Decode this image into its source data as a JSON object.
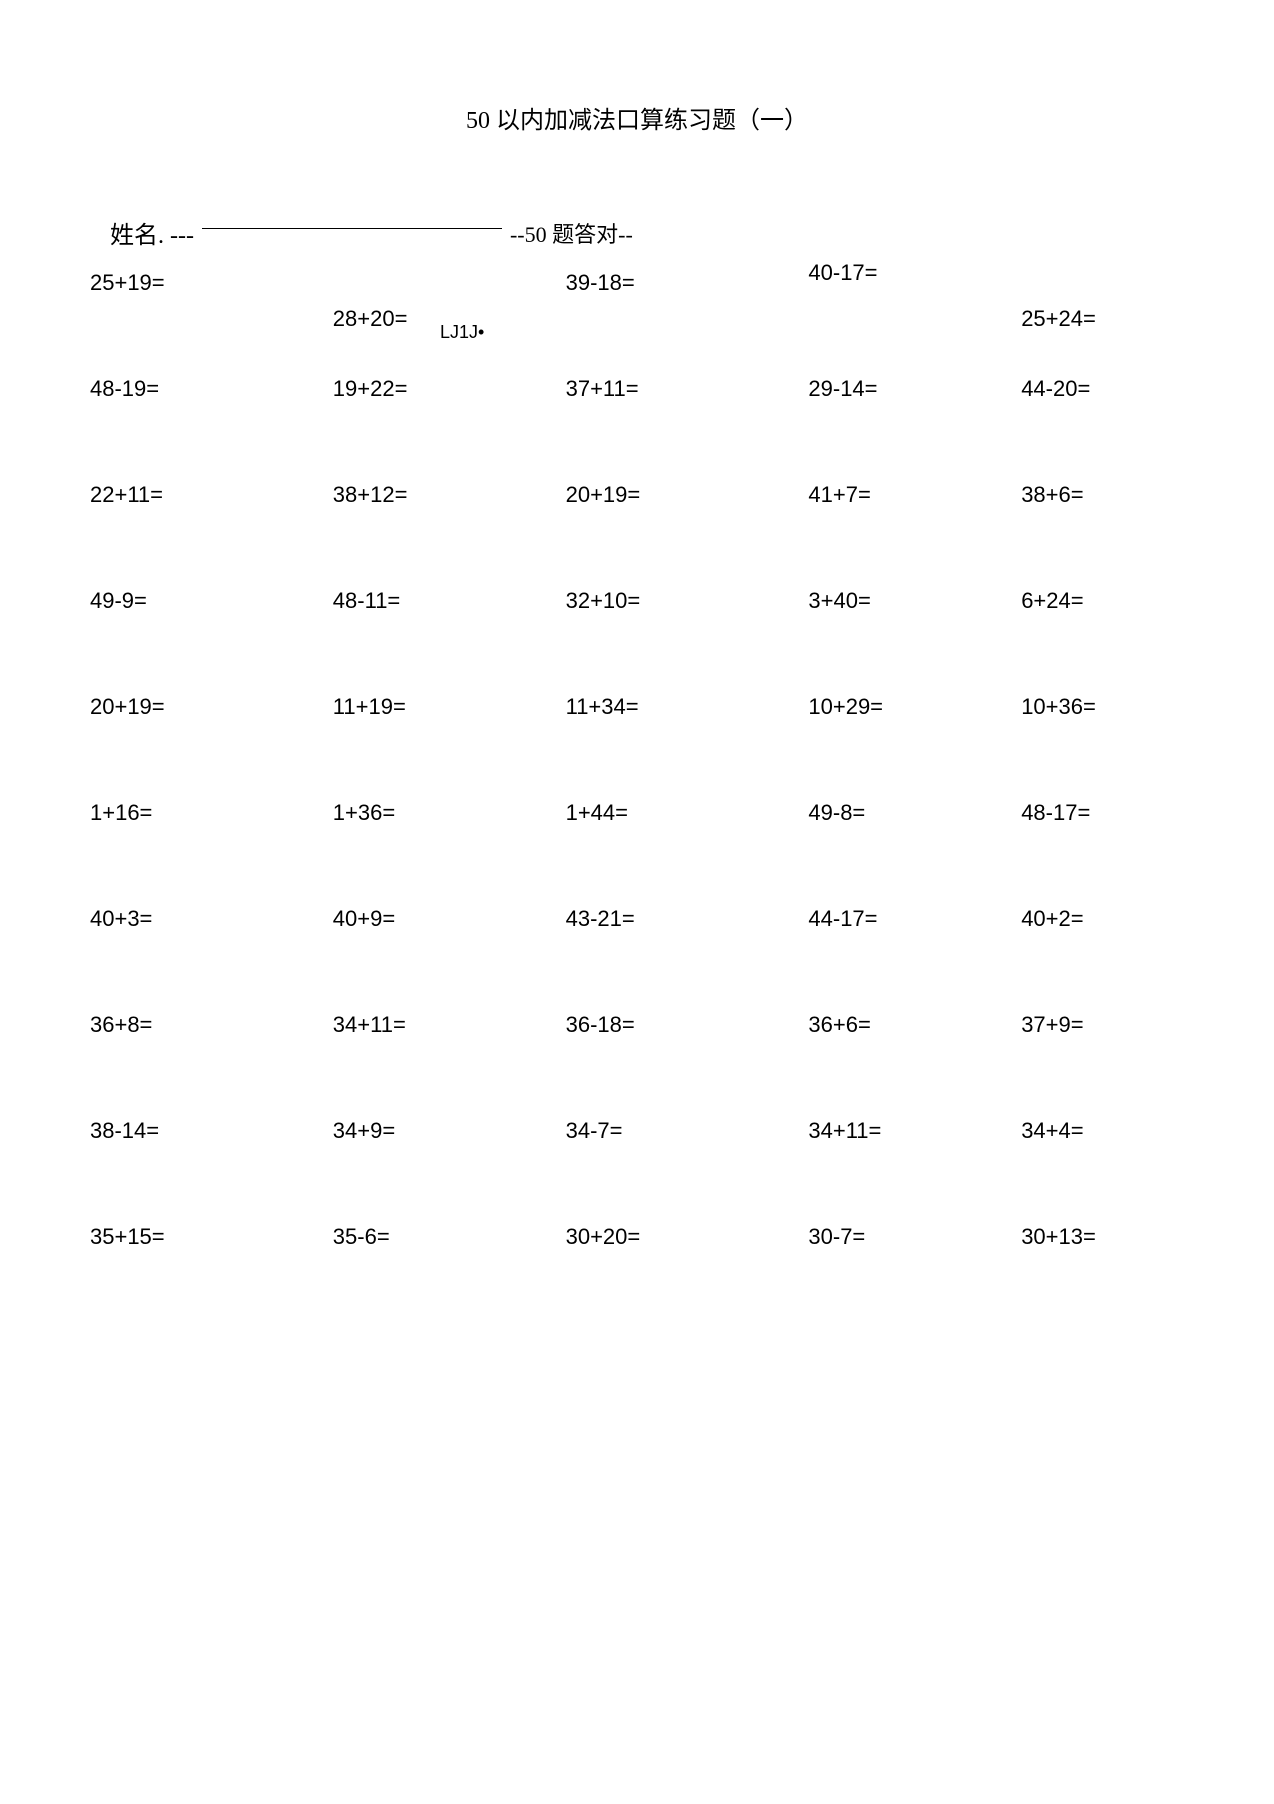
{
  "title": "50 以内加减法口算练习题（一）",
  "header": {
    "name_label": "姓名. ---",
    "artifact": "LJ1J•",
    "score_label": "--50 题答对--"
  },
  "rows": [
    [
      "25+19=",
      "28+20=",
      "39-18=",
      "40-17=",
      "25+24="
    ],
    [
      "48-19=",
      "19+22=",
      "37+11=",
      "29-14=",
      "44-20="
    ],
    [
      "22+11=",
      "38+12=",
      "20+19=",
      "41+7=",
      "38+6="
    ],
    [
      "49-9=",
      "48-11=",
      "32+10=",
      "3+40=",
      "6+24="
    ],
    [
      "20+19=",
      "11+19=",
      "11+34=",
      "10+29=",
      "10+36="
    ],
    [
      "1+16=",
      "1+36=",
      "1+44=",
      "49-8=",
      "48-17="
    ],
    [
      "40+3=",
      "40+9=",
      "43-21=",
      "44-17=",
      "40+2="
    ],
    [
      "36+8=",
      "34+11=",
      "36-18=",
      "36+6=",
      "37+9="
    ],
    [
      "38-14=",
      "34+9=",
      "34-7=",
      "34+11=",
      "34+4="
    ],
    [
      "35+15=",
      "35-6=",
      "30+20=",
      "30-7=",
      "30+13="
    ]
  ]
}
